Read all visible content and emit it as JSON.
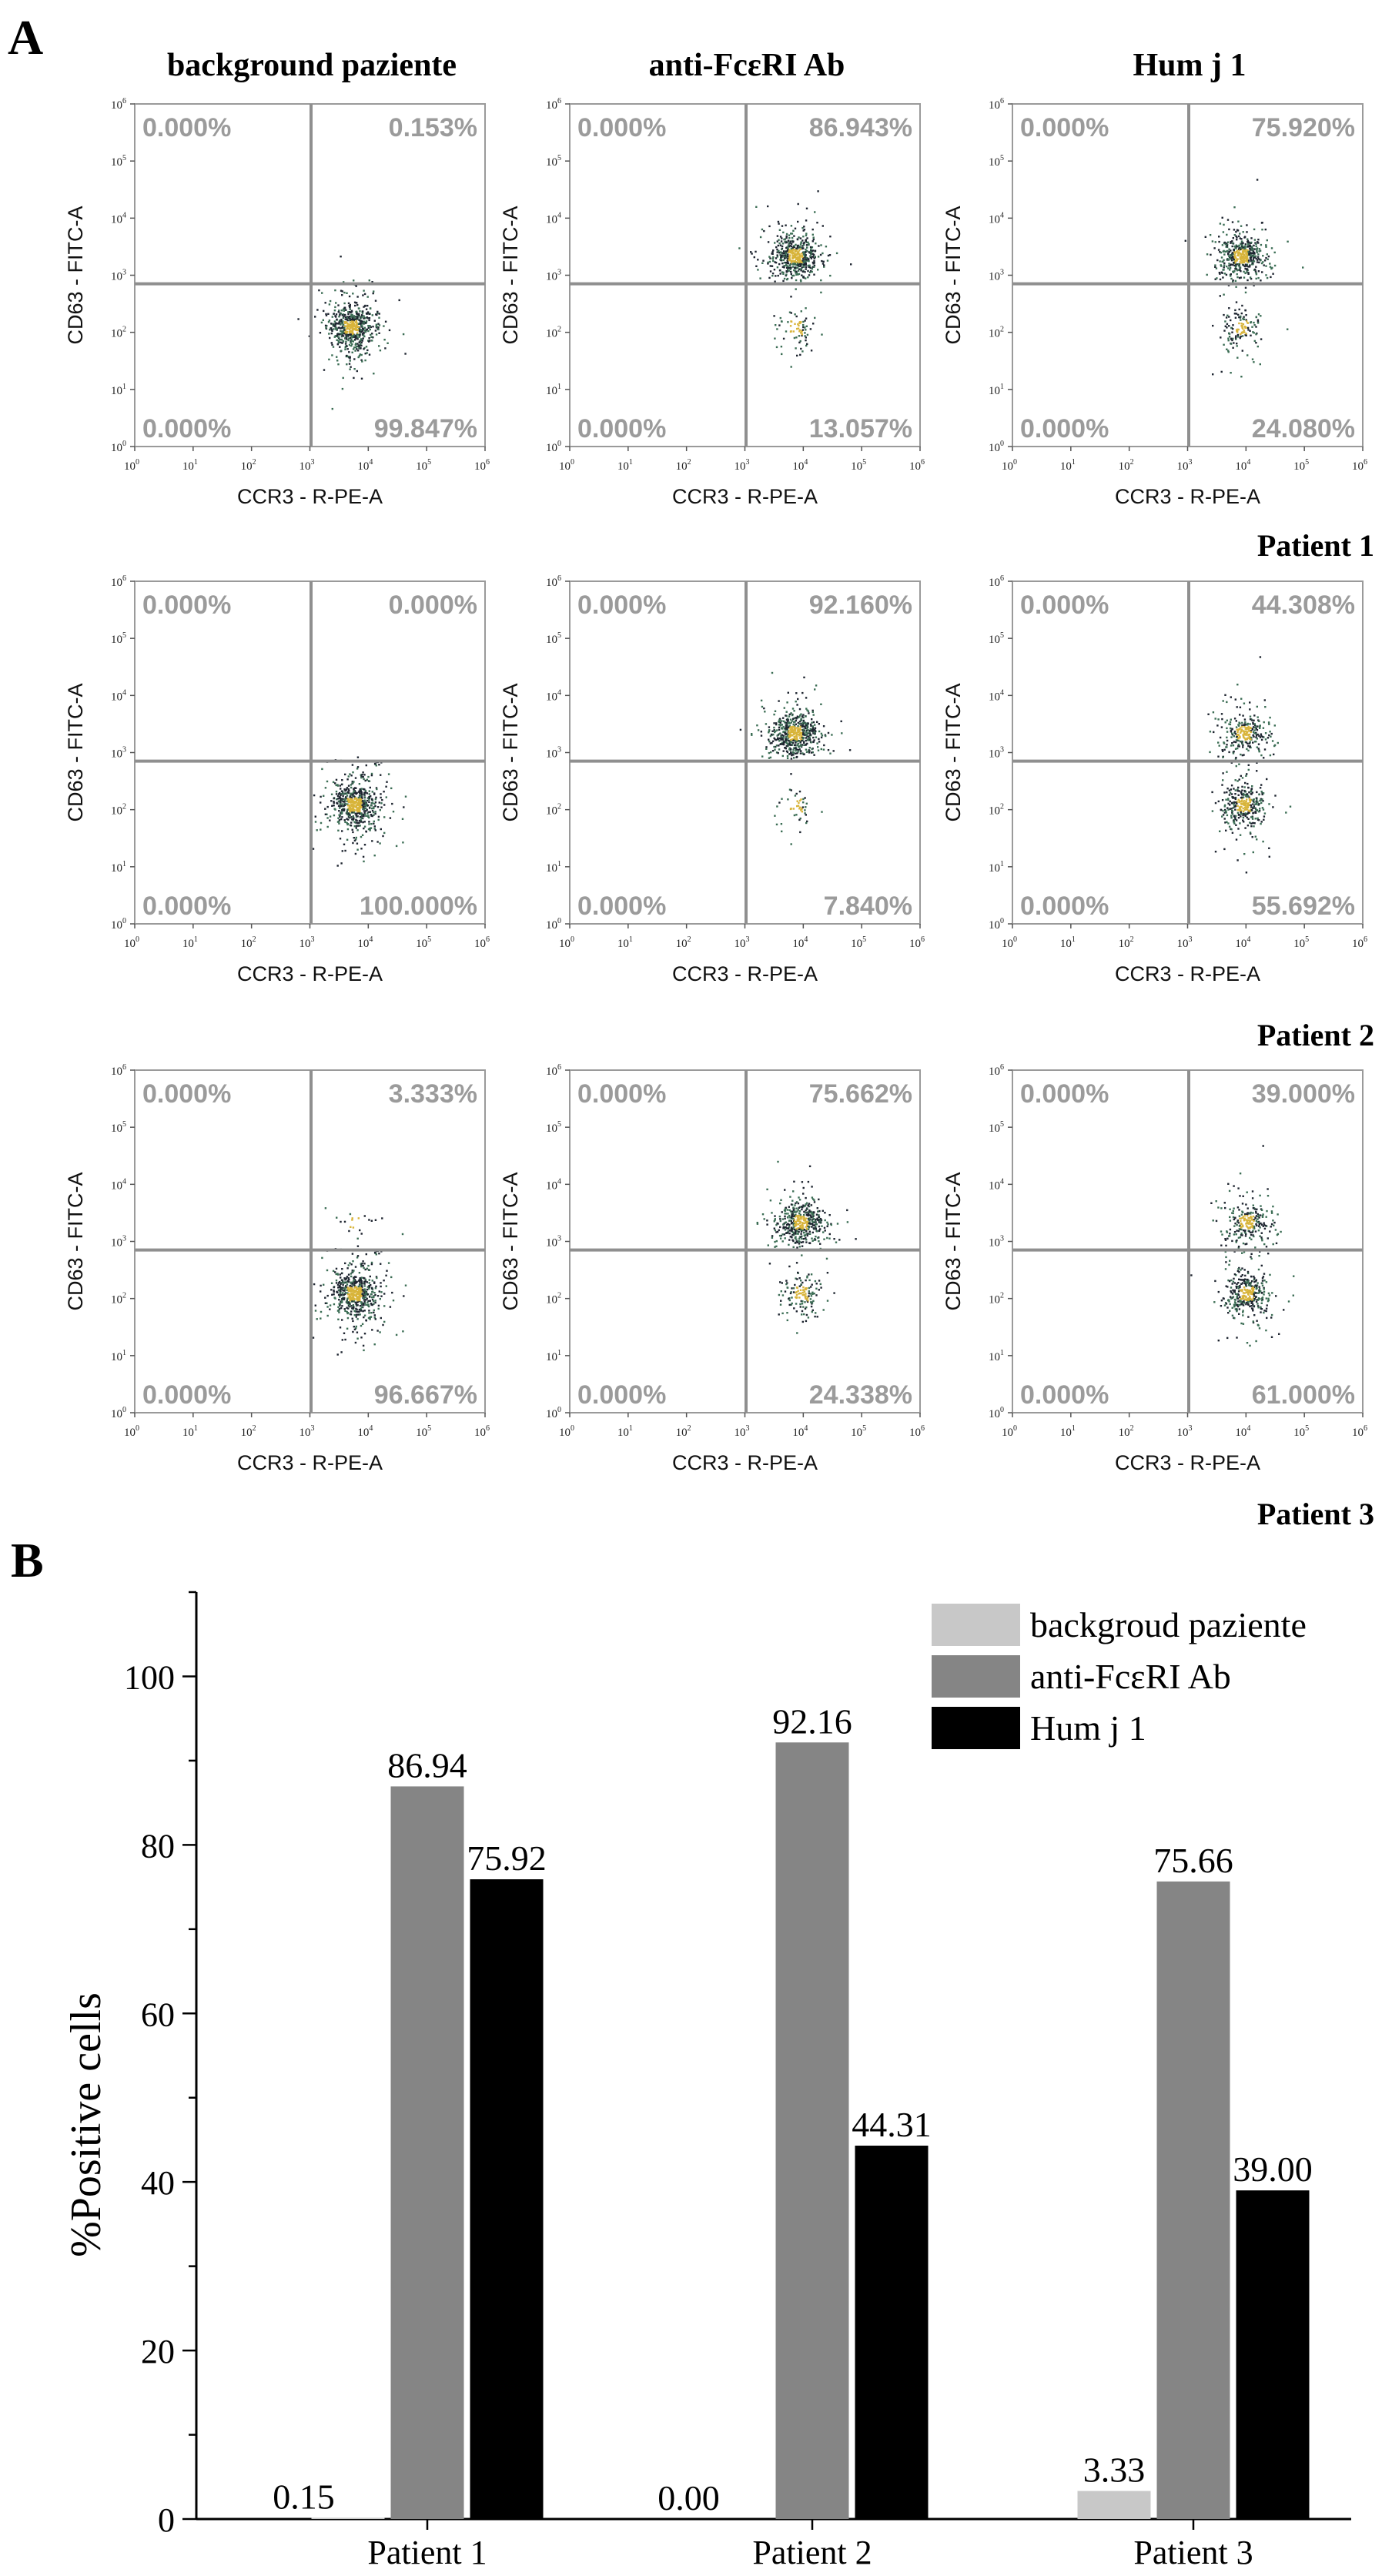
{
  "panel_labels": {
    "a": "A",
    "b": "B"
  },
  "flow": {
    "columns": [
      "background paziente",
      "anti-FcεRI Ab",
      "Hum j 1"
    ],
    "patients": [
      "Patient 1",
      "Patient 2",
      "Patient 3"
    ],
    "x_label": "CCR3 - R-PE-A",
    "y_label": "CD63 - FITC-A",
    "tick_base": "10",
    "tick_exponents": [
      "0",
      "1",
      "2",
      "3",
      "4",
      "5",
      "6"
    ],
    "plots": [
      [
        {
          "ul": "0.000%",
          "ur": "0.153%",
          "ll": "0.000%",
          "lr": "99.847%"
        },
        {
          "ul": "0.000%",
          "ur": "86.943%",
          "ll": "0.000%",
          "lr": "13.057%"
        },
        {
          "ul": "0.000%",
          "ur": "75.920%",
          "ll": "0.000%",
          "lr": "24.080%"
        }
      ],
      [
        {
          "ul": "0.000%",
          "ur": "0.000%",
          "ll": "0.000%",
          "lr": "100.000%"
        },
        {
          "ul": "0.000%",
          "ur": "92.160%",
          "ll": "0.000%",
          "lr": "7.840%"
        },
        {
          "ul": "0.000%",
          "ur": "44.308%",
          "ll": "0.000%",
          "lr": "55.692%"
        }
      ],
      [
        {
          "ul": "0.000%",
          "ur": "3.333%",
          "ll": "0.000%",
          "lr": "96.667%"
        },
        {
          "ul": "0.000%",
          "ur": "75.662%",
          "ll": "0.000%",
          "lr": "24.338%"
        },
        {
          "ul": "0.000%",
          "ur": "39.000%",
          "ll": "0.000%",
          "lr": "61.000%"
        }
      ]
    ]
  },
  "chart_data": {
    "type": "bar",
    "title": "",
    "xlabel": "",
    "ylabel": "%Positive cells",
    "categories": [
      "Patient 1",
      "Patient 2",
      "Patient 3"
    ],
    "ylim": [
      0,
      110
    ],
    "yticks": [
      0,
      20,
      40,
      60,
      80,
      100
    ],
    "legend_position": "top-right",
    "series": [
      {
        "name": "backgroud paziente",
        "values": [
          0.15,
          0.0,
          3.33
        ],
        "labels": [
          "0.15",
          "0.00",
          "3.33"
        ],
        "color": "#c8c8c8"
      },
      {
        "name": "anti-FcεRI Ab",
        "values": [
          86.94,
          92.16,
          75.66
        ],
        "labels": [
          "86.94",
          "92.16",
          "75.66"
        ],
        "color": "#858585"
      },
      {
        "name": "Hum j 1",
        "values": [
          75.92,
          44.31,
          39.0
        ],
        "labels": [
          "75.92",
          "44.31",
          "39.00"
        ],
        "color": "#000000"
      }
    ]
  }
}
